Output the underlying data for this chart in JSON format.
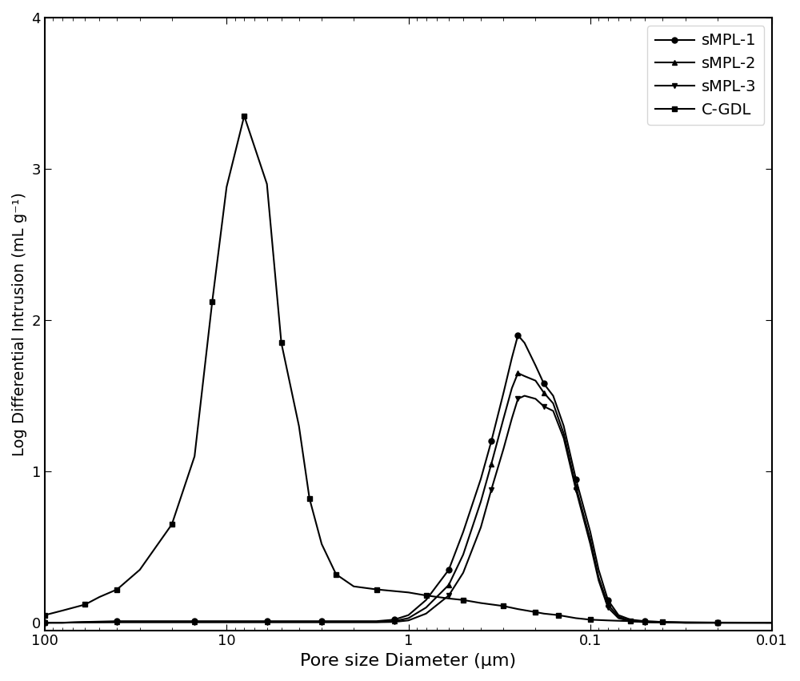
{
  "title": "",
  "xlabel": "Pore size Diameter (μm)",
  "ylabel": "Log Differential Intrusion (mL g⁻¹)",
  "xlim_left": 100,
  "xlim_right": 0.01,
  "ylim": [
    -0.05,
    4.0
  ],
  "yticks": [
    0,
    1,
    2,
    3,
    4
  ],
  "background_color": "#ffffff",
  "series": [
    {
      "label": "sMPL-1",
      "marker": "o",
      "color": "#000000",
      "x": [
        100,
        80,
        60,
        40,
        30,
        20,
        15,
        10,
        8,
        6,
        5,
        4,
        3,
        2,
        1.5,
        1.2,
        1.0,
        0.8,
        0.6,
        0.5,
        0.4,
        0.35,
        0.3,
        0.27,
        0.25,
        0.23,
        0.2,
        0.18,
        0.16,
        0.14,
        0.12,
        0.1,
        0.09,
        0.08,
        0.07,
        0.06,
        0.05,
        0.04,
        0.03,
        0.02,
        0.01
      ],
      "y": [
        0.0,
        0.0,
        0.005,
        0.01,
        0.01,
        0.01,
        0.01,
        0.01,
        0.01,
        0.01,
        0.01,
        0.01,
        0.01,
        0.01,
        0.01,
        0.02,
        0.05,
        0.15,
        0.35,
        0.6,
        0.95,
        1.2,
        1.52,
        1.75,
        1.9,
        1.85,
        1.7,
        1.58,
        1.5,
        1.3,
        0.95,
        0.6,
        0.35,
        0.15,
        0.05,
        0.02,
        0.01,
        0.005,
        0.0,
        0.0,
        0.0
      ]
    },
    {
      "label": "sMPL-2",
      "marker": "^",
      "color": "#000000",
      "x": [
        100,
        80,
        60,
        40,
        30,
        20,
        15,
        10,
        8,
        6,
        5,
        4,
        3,
        2,
        1.5,
        1.2,
        1.0,
        0.8,
        0.6,
        0.5,
        0.4,
        0.35,
        0.3,
        0.27,
        0.25,
        0.23,
        0.2,
        0.18,
        0.16,
        0.14,
        0.12,
        0.1,
        0.09,
        0.08,
        0.07,
        0.06,
        0.05,
        0.04,
        0.03,
        0.02,
        0.01
      ],
      "y": [
        0.0,
        0.0,
        0.003,
        0.005,
        0.005,
        0.005,
        0.005,
        0.005,
        0.005,
        0.005,
        0.005,
        0.005,
        0.005,
        0.005,
        0.005,
        0.01,
        0.03,
        0.1,
        0.25,
        0.45,
        0.8,
        1.05,
        1.35,
        1.55,
        1.65,
        1.63,
        1.6,
        1.52,
        1.45,
        1.25,
        0.9,
        0.55,
        0.3,
        0.12,
        0.04,
        0.01,
        0.005,
        0.002,
        0.0,
        0.0,
        0.0
      ]
    },
    {
      "label": "sMPL-3",
      "marker": "v",
      "color": "#000000",
      "x": [
        100,
        80,
        60,
        40,
        30,
        20,
        15,
        10,
        8,
        6,
        5,
        4,
        3,
        2,
        1.5,
        1.2,
        1.0,
        0.8,
        0.6,
        0.5,
        0.4,
        0.35,
        0.3,
        0.27,
        0.25,
        0.23,
        0.2,
        0.18,
        0.16,
        0.14,
        0.12,
        0.1,
        0.09,
        0.08,
        0.07,
        0.06,
        0.05,
        0.04,
        0.03,
        0.02,
        0.01
      ],
      "y": [
        0.0,
        0.0,
        0.002,
        0.003,
        0.003,
        0.003,
        0.003,
        0.003,
        0.003,
        0.003,
        0.003,
        0.003,
        0.003,
        0.003,
        0.003,
        0.005,
        0.015,
        0.06,
        0.18,
        0.33,
        0.63,
        0.88,
        1.15,
        1.35,
        1.48,
        1.5,
        1.48,
        1.43,
        1.4,
        1.22,
        0.88,
        0.52,
        0.28,
        0.1,
        0.03,
        0.01,
        0.003,
        0.001,
        0.0,
        0.0,
        0.0
      ]
    },
    {
      "label": "C-GDL",
      "marker": "s",
      "color": "#000000",
      "x": [
        100,
        80,
        60,
        50,
        40,
        30,
        20,
        15,
        12,
        10,
        8,
        6,
        5,
        4,
        3.5,
        3.0,
        2.5,
        2.0,
        1.5,
        1.0,
        0.8,
        0.6,
        0.5,
        0.4,
        0.3,
        0.25,
        0.2,
        0.18,
        0.15,
        0.12,
        0.1,
        0.08,
        0.06,
        0.05,
        0.04,
        0.03,
        0.02,
        0.01
      ],
      "y": [
        0.05,
        0.08,
        0.12,
        0.17,
        0.22,
        0.35,
        0.65,
        1.1,
        2.12,
        2.88,
        3.35,
        2.9,
        1.85,
        1.3,
        0.82,
        0.52,
        0.32,
        0.24,
        0.22,
        0.2,
        0.18,
        0.16,
        0.15,
        0.13,
        0.11,
        0.09,
        0.07,
        0.06,
        0.05,
        0.03,
        0.02,
        0.015,
        0.01,
        0.008,
        0.005,
        0.003,
        0.001,
        0.0
      ]
    }
  ]
}
